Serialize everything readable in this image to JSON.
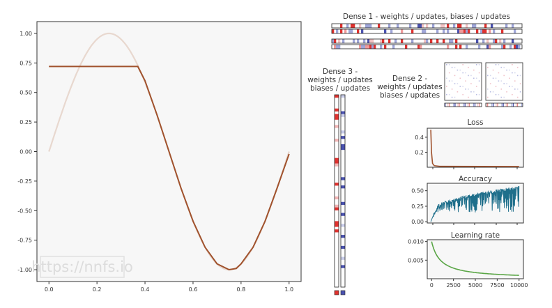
{
  "watermark": "https://nnfs.io",
  "titles": {
    "dense1": "Dense 1 - weights / updates, biases / updates",
    "dense2": [
      "Dense 2 -",
      "weights / updates",
      "biases / updates"
    ],
    "dense3": [
      "Dense 3 -",
      "weights / updates",
      "biases / updates"
    ]
  },
  "colors": {
    "background": "#ffffff",
    "plot_face": "#f7f7f7",
    "sine_target": "#e8d8cf",
    "prediction": "#a0522d",
    "loss": "#a0522d",
    "accuracy": "#1f6f8b",
    "learning_rate": "#5aa646",
    "weight_red": "#e0322f",
    "weight_blue": "#4a52b0"
  },
  "chart_data": [
    {
      "id": "main",
      "type": "line",
      "xlim": [
        -0.05,
        1.05
      ],
      "ylim": [
        -1.1,
        1.1
      ],
      "xticks": [
        "0.0",
        "0.2",
        "0.4",
        "0.6",
        "0.8",
        "1.0"
      ],
      "yticks": [
        "1.00",
        "0.75",
        "0.50",
        "0.25",
        "0.00",
        "-0.25",
        "-0.50",
        "-0.75",
        "-1.00"
      ],
      "series": [
        {
          "role": "target",
          "function": "sin(2*pi*x)",
          "x_range": [
            0,
            1
          ]
        },
        {
          "role": "prediction",
          "points": [
            [
              0,
              0.72
            ],
            [
              0.37,
              0.72
            ],
            [
              0.4,
              0.6
            ],
            [
              0.45,
              0.31
            ],
            [
              0.5,
              0.0
            ],
            [
              0.55,
              -0.31
            ],
            [
              0.6,
              -0.59
            ],
            [
              0.65,
              -0.81
            ],
            [
              0.7,
              -0.95
            ],
            [
              0.75,
              -1.0
            ],
            [
              0.78,
              -0.99
            ],
            [
              0.8,
              -0.95
            ],
            [
              0.85,
              -0.81
            ],
            [
              0.9,
              -0.59
            ],
            [
              0.95,
              -0.31
            ],
            [
              1.0,
              -0.02
            ]
          ]
        }
      ]
    },
    {
      "id": "loss",
      "type": "line",
      "title": "Loss",
      "xlim": [
        0,
        10000
      ],
      "ylim": [
        0,
        0.52
      ],
      "yticks": [
        "0.4",
        "0.2"
      ],
      "series": [
        {
          "points": [
            [
              0,
              0.5
            ],
            [
              80,
              0.2
            ],
            [
              200,
              0.05
            ],
            [
              400,
              0.02
            ],
            [
              1000,
              0.012
            ],
            [
              10000,
              0.01
            ]
          ]
        }
      ]
    },
    {
      "id": "accuracy",
      "type": "line",
      "title": "Accuracy",
      "xlim": [
        0,
        10000
      ],
      "ylim": [
        -0.02,
        0.62
      ],
      "yticks": [
        "0.50",
        "0.25",
        "0.00"
      ],
      "trend": {
        "start": [
          0,
          0.0
        ],
        "rise": [
          700,
          0.25
        ],
        "end": [
          10000,
          0.58
        ],
        "noise_low": 0.15
      }
    },
    {
      "id": "learning_rate",
      "type": "line",
      "title": "Learning rate",
      "xlim": [
        -500,
        10500
      ],
      "ylim": [
        0,
        0.0105
      ],
      "xticks": [
        "0",
        "2500",
        "5000",
        "7500",
        "10000"
      ],
      "yticks": [
        "0.010",
        "0.005"
      ],
      "series": [
        {
          "function": "0.01/(1+0.001*x)",
          "x_range": [
            0,
            10000
          ]
        }
      ]
    }
  ],
  "heatmaps": {
    "dense1_pattern": "0101000330000220033330000110000222202000000330000400002000000022000002000020000000404011021203002003010",
    "dense3_pattern": "30000303300100001000000331000000300001001300003303000000000000000000003330003300003000000"
  }
}
